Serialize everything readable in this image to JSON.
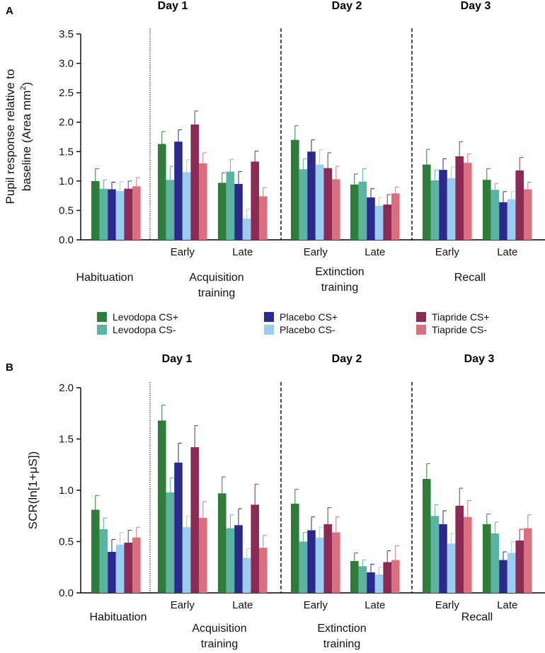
{
  "colors": {
    "levodopa_plus": "#2e7d3b",
    "levodopa_minus": "#5bb3a2",
    "placebo_plus": "#2b2a8c",
    "placebo_minus": "#9bcdf0",
    "tiapride_plus": "#8b2a55",
    "tiapride_minus": "#d9707d"
  },
  "legend": [
    {
      "key": "levodopa_plus",
      "label": "Levodopa CS+"
    },
    {
      "key": "levodopa_minus",
      "label": "Levodopa CS-"
    },
    {
      "key": "placebo_plus",
      "label": "Placebo CS+"
    },
    {
      "key": "placebo_minus",
      "label": "Placebo CS-"
    },
    {
      "key": "tiapride_plus",
      "label": "Tiapride CS+"
    },
    {
      "key": "tiapride_minus",
      "label": "Tiapride CS-"
    }
  ],
  "chart_data": [
    {
      "type": "bar",
      "panel": "A",
      "ylabel": "Pupil response relative to baseline (Area mm²)",
      "ylabel_lines": [
        "Pupil response relative to",
        "baseline (Area mm",
        "2",
        ")"
      ],
      "ylim": [
        0,
        3.5
      ],
      "yticks": [
        "0.0",
        "0.5",
        "1.0",
        "1.5",
        "2.0",
        "2.5",
        "3.0",
        "3.5"
      ],
      "days": [
        "Day 1",
        "Day 2",
        "Day 3"
      ],
      "phases": [
        {
          "lines": [
            "Habituation"
          ]
        },
        {
          "lines": [
            "Acquisition",
            "training"
          ]
        },
        {
          "lines": [
            "Extinction",
            "training"
          ]
        },
        {
          "lines": [
            "Recall"
          ]
        }
      ],
      "categories": [
        "",
        "Early",
        "Late",
        "Early",
        "Late",
        "Early",
        "Late"
      ],
      "series": [
        {
          "name": "Levodopa CS+",
          "key": "levodopa_plus",
          "values": [
            1.0,
            1.63,
            0.97,
            1.7,
            0.94,
            1.28,
            1.02
          ],
          "errors": [
            0.21,
            0.21,
            0.17,
            0.24,
            0.18,
            0.26,
            0.19
          ]
        },
        {
          "name": "Levodopa CS-",
          "key": "levodopa_minus",
          "values": [
            0.87,
            1.02,
            1.16,
            1.2,
            0.99,
            1.01,
            0.85
          ],
          "errors": [
            0.15,
            0.23,
            0.21,
            0.18,
            0.22,
            0.18,
            0.11
          ]
        },
        {
          "name": "Placebo CS+",
          "key": "placebo_plus",
          "values": [
            0.86,
            1.67,
            0.95,
            1.5,
            0.72,
            1.19,
            0.64
          ],
          "errors": [
            0.12,
            0.2,
            0.21,
            0.2,
            0.15,
            0.19,
            0.18
          ]
        },
        {
          "name": "Placebo CS-",
          "key": "placebo_minus",
          "values": [
            0.83,
            1.15,
            0.36,
            1.28,
            0.58,
            1.05,
            0.69
          ],
          "errors": [
            0.16,
            0.21,
            0.16,
            0.25,
            0.14,
            0.19,
            0.13
          ]
        },
        {
          "name": "Tiapride CS+",
          "key": "tiapride_plus",
          "values": [
            0.87,
            1.96,
            1.33,
            1.22,
            0.6,
            1.42,
            1.18
          ],
          "errors": [
            0.13,
            0.23,
            0.18,
            0.26,
            0.17,
            0.25,
            0.22
          ]
        },
        {
          "name": "Tiapride CS-",
          "key": "tiapride_minus",
          "values": [
            0.91,
            1.3,
            0.74,
            1.03,
            0.79,
            1.31,
            0.86
          ],
          "errors": [
            0.15,
            0.18,
            0.15,
            0.22,
            0.11,
            0.15,
            0.12
          ]
        }
      ]
    },
    {
      "type": "bar",
      "panel": "B",
      "ylabel": "SCR(ln[1+μS])",
      "ylabel_lines": [
        "SCR(ln[1+μS])"
      ],
      "ylim": [
        0,
        2.0
      ],
      "yticks": [
        "0.0",
        "0.5",
        "1.0",
        "1.5",
        "2.0"
      ],
      "days": [
        "Day 1",
        "Day 2",
        "Day 3"
      ],
      "phases": [
        {
          "lines": [
            "Habituation"
          ]
        },
        {
          "lines": [
            "Acquisition",
            "training"
          ]
        },
        {
          "lines": [
            "Extinction",
            "training"
          ]
        },
        {
          "lines": [
            "Recall"
          ]
        }
      ],
      "categories": [
        "",
        "Early",
        "Late",
        "Early",
        "Late",
        "Early",
        "Late"
      ],
      "series": [
        {
          "name": "Levodopa CS+",
          "key": "levodopa_plus",
          "values": [
            0.81,
            1.68,
            0.97,
            0.87,
            0.31,
            1.11,
            0.67
          ],
          "errors": [
            0.14,
            0.15,
            0.16,
            0.14,
            0.08,
            0.15,
            0.1
          ]
        },
        {
          "name": "Levodopa CS-",
          "key": "levodopa_minus",
          "values": [
            0.62,
            0.98,
            0.63,
            0.5,
            0.26,
            0.75,
            0.58
          ],
          "errors": [
            0.11,
            0.14,
            0.13,
            0.09,
            0.06,
            0.11,
            0.11
          ]
        },
        {
          "name": "Placebo CS+",
          "key": "placebo_plus",
          "values": [
            0.4,
            1.27,
            0.66,
            0.61,
            0.2,
            0.67,
            0.32
          ],
          "errors": [
            0.12,
            0.19,
            0.16,
            0.13,
            0.08,
            0.13,
            0.08
          ]
        },
        {
          "name": "Placebo CS-",
          "key": "placebo_minus",
          "values": [
            0.47,
            0.64,
            0.34,
            0.54,
            0.18,
            0.48,
            0.39
          ],
          "errors": [
            0.12,
            0.11,
            0.09,
            0.1,
            0.07,
            0.1,
            0.11
          ]
        },
        {
          "name": "Tiapride CS+",
          "key": "tiapride_plus",
          "values": [
            0.49,
            1.42,
            0.86,
            0.67,
            0.3,
            0.85,
            0.51
          ],
          "errors": [
            0.12,
            0.21,
            0.2,
            0.16,
            0.11,
            0.17,
            0.11
          ]
        },
        {
          "name": "Tiapride CS-",
          "key": "tiapride_minus",
          "values": [
            0.54,
            0.73,
            0.44,
            0.59,
            0.32,
            0.74,
            0.63
          ],
          "errors": [
            0.1,
            0.16,
            0.12,
            0.15,
            0.14,
            0.16,
            0.13
          ]
        }
      ]
    }
  ]
}
